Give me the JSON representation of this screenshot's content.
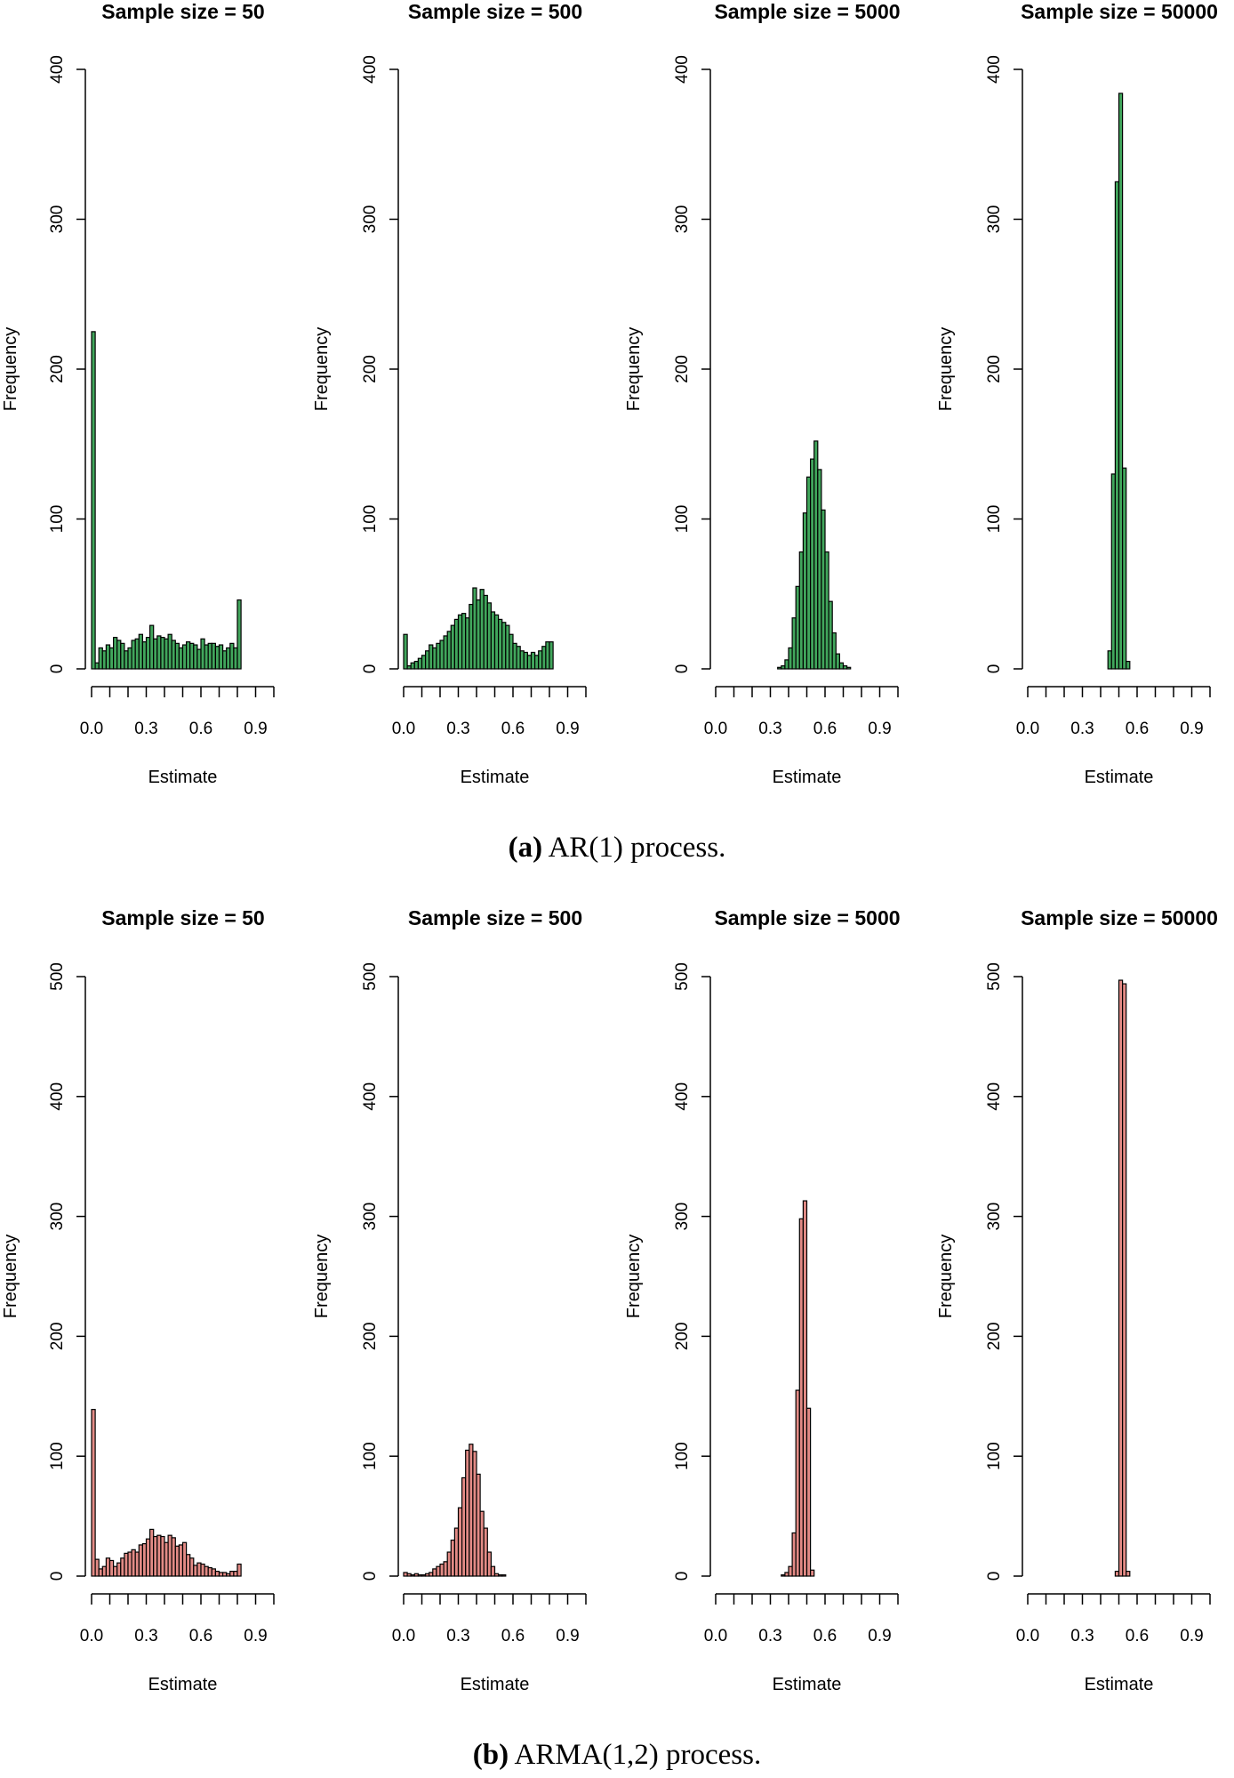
{
  "chart_data": [
    {
      "panel": "a",
      "caption_label": "(a)",
      "caption_text": "AR(1) process.",
      "type": "bar",
      "xlabel": "Estimate",
      "ylabel": "Frequency",
      "xlim": [
        0,
        1
      ],
      "xticks": [
        0.0,
        0.1,
        0.2,
        0.3,
        0.4,
        0.5,
        0.6,
        0.7,
        0.8,
        0.9,
        1.0
      ],
      "xtick_labels": [
        "0.0",
        "0.3",
        "0.6",
        "0.9"
      ],
      "ylim": [
        0,
        400
      ],
      "yticks": [
        "0",
        "100",
        "200",
        "300",
        "400"
      ],
      "bar_color": "#41a65c",
      "bin_width": 0.02,
      "subplots": [
        {
          "title": "Sample size = 50",
          "values": [
            225,
            4,
            14,
            12,
            16,
            14,
            21,
            19,
            17,
            12,
            14,
            19,
            20,
            23,
            18,
            21,
            29,
            20,
            22,
            21,
            20,
            23,
            19,
            17,
            14,
            16,
            18,
            17,
            16,
            13,
            20,
            16,
            17,
            17,
            15,
            16,
            12,
            14,
            17,
            14,
            46
          ]
        },
        {
          "title": "Sample size = 500",
          "values": [
            23,
            2,
            4,
            5,
            7,
            9,
            12,
            16,
            14,
            17,
            19,
            22,
            25,
            29,
            33,
            36,
            37,
            34,
            43,
            54,
            46,
            53,
            49,
            44,
            38,
            36,
            33,
            31,
            29,
            23,
            17,
            15,
            12,
            11,
            9,
            11,
            9,
            12,
            15,
            18,
            18
          ]
        },
        {
          "title": "Sample size = 5000",
          "values": [
            0,
            0,
            0,
            0,
            0,
            0,
            0,
            0,
            0,
            0,
            0,
            0,
            0,
            0,
            0,
            0,
            0,
            1,
            2,
            6,
            14,
            34,
            55,
            78,
            104,
            128,
            140,
            152,
            133,
            106,
            78,
            45,
            24,
            10,
            4,
            2,
            1,
            0,
            0,
            0
          ]
        },
        {
          "title": "Sample size = 50000",
          "values": [
            0,
            0,
            0,
            0,
            0,
            0,
            0,
            0,
            0,
            0,
            0,
            0,
            0,
            0,
            0,
            0,
            0,
            0,
            0,
            0,
            0,
            0,
            12,
            130,
            325,
            384,
            134,
            5,
            0,
            0,
            0,
            0,
            0,
            0,
            0,
            0,
            0,
            0,
            0,
            0
          ]
        }
      ]
    },
    {
      "panel": "b",
      "caption_label": "(b)",
      "caption_text": "ARMA(1,2) process.",
      "type": "bar",
      "xlabel": "Estimate",
      "ylabel": "Frequency",
      "xlim": [
        0,
        1
      ],
      "xticks": [
        0.0,
        0.1,
        0.2,
        0.3,
        0.4,
        0.5,
        0.6,
        0.7,
        0.8,
        0.9,
        1.0
      ],
      "xtick_labels": [
        "0.0",
        "0.3",
        "0.6",
        "0.9"
      ],
      "ylim": [
        0,
        500
      ],
      "yticks": [
        "0",
        "100",
        "200",
        "300",
        "400",
        "500"
      ],
      "bar_color": "#e38b86",
      "bin_width": 0.02,
      "subplots": [
        {
          "title": "Sample size = 50",
          "values": [
            139,
            14,
            6,
            8,
            15,
            13,
            8,
            11,
            15,
            19,
            20,
            22,
            20,
            26,
            27,
            31,
            39,
            33,
            34,
            33,
            28,
            34,
            32,
            25,
            26,
            28,
            18,
            15,
            9,
            11,
            10,
            8,
            7,
            6,
            4,
            3,
            3,
            2,
            4,
            4,
            10
          ]
        },
        {
          "title": "Sample size = 500",
          "values": [
            3,
            2,
            1,
            2,
            1,
            1,
            2,
            3,
            6,
            8,
            10,
            12,
            20,
            30,
            40,
            57,
            82,
            105,
            110,
            104,
            85,
            54,
            40,
            20,
            8,
            2,
            1,
            1,
            0,
            0,
            0,
            0,
            0,
            0,
            0,
            0,
            0,
            0,
            0,
            0
          ]
        },
        {
          "title": "Sample size = 5000",
          "values": [
            0,
            0,
            0,
            0,
            0,
            0,
            0,
            0,
            0,
            0,
            0,
            0,
            0,
            0,
            0,
            0,
            0,
            0,
            1,
            3,
            8,
            36,
            155,
            298,
            313,
            140,
            5,
            0,
            0,
            0,
            0,
            0,
            0,
            0,
            0,
            0,
            0,
            0,
            0,
            0
          ]
        },
        {
          "title": "Sample size = 50000",
          "values": [
            0,
            0,
            0,
            0,
            0,
            0,
            0,
            0,
            0,
            0,
            0,
            0,
            0,
            0,
            0,
            0,
            0,
            0,
            0,
            0,
            0,
            0,
            0,
            0,
            4,
            497,
            494,
            4,
            0,
            0,
            0,
            0,
            0,
            0,
            0,
            0,
            0,
            0,
            0,
            0
          ]
        }
      ]
    }
  ]
}
